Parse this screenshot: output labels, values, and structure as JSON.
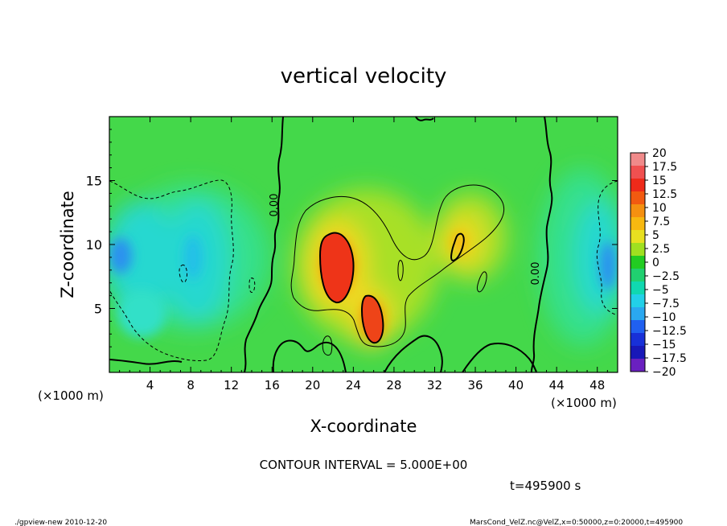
{
  "chart_data": {
    "type": "heatmap",
    "title": "vertical velocity",
    "xlabel": "X-coordinate",
    "ylabel": "Z-coordinate",
    "x_unit_label": "(×1000 m)",
    "y_unit_label": "(×1000 m)",
    "xlim": [
      0,
      50
    ],
    "ylim": [
      0,
      20
    ],
    "x_ticks": [
      "4",
      "8",
      "12",
      "16",
      "20",
      "24",
      "28",
      "32",
      "36",
      "40",
      "44",
      "48"
    ],
    "x_tick_values": [
      4,
      8,
      12,
      16,
      20,
      24,
      28,
      32,
      36,
      40,
      44,
      48
    ],
    "y_ticks": [
      "5",
      "10",
      "15"
    ],
    "y_tick_values": [
      5,
      10,
      15
    ],
    "colorbar": {
      "labels": [
        "20",
        "17.5",
        "15",
        "12.5",
        "10",
        "7.5",
        "5",
        "2.5",
        "0",
        "−2.5",
        "−5",
        "−7.5",
        "−10",
        "−12.5",
        "−15",
        "−17.5",
        "−20"
      ],
      "values": [
        20,
        17.5,
        15,
        12.5,
        10,
        7.5,
        5,
        2.5,
        0,
        -2.5,
        -5,
        -7.5,
        -10,
        -12.5,
        -15,
        -17.5,
        -20
      ],
      "colors": [
        "#f08a8a",
        "#f05050",
        "#ee2a1a",
        "#f25a10",
        "#f59010",
        "#f7b810",
        "#e8e020",
        "#a0e020",
        "#22cc22",
        "#20d070",
        "#10d8b0",
        "#22d0e8",
        "#2aa8f0",
        "#2060f0",
        "#1830d8",
        "#1818b8",
        "#6a20c0"
      ]
    },
    "contour_interval": "5.000E+00",
    "contour_labels": [
      "0.00",
      "0.00"
    ],
    "features": [
      {
        "sign": "positive",
        "x_center": 22,
        "z_center": 8.5,
        "peak": 15
      },
      {
        "sign": "positive",
        "x_center": 26,
        "z_center": 4.5,
        "peak": 12.5
      },
      {
        "sign": "positive",
        "x_center": 34.5,
        "z_center": 10,
        "peak": 7.5
      },
      {
        "sign": "negative",
        "x_center": 1,
        "z_center": 9.5,
        "peak": -10
      },
      {
        "sign": "negative",
        "x_center": 8,
        "z_center": 9,
        "peak": -7.5
      },
      {
        "sign": "negative",
        "x_center": 49,
        "z_center": 9,
        "peak": -10
      }
    ]
  },
  "footer": {
    "contour_interval_text": "CONTOUR INTERVAL = 5.000E+00",
    "time_text": "t=495900 s",
    "program_text": "./gpview-new  2010-12-20",
    "source_text": "MarsCond_VelZ.nc@VelZ,x=0:50000,z=0:20000,t=495900"
  }
}
